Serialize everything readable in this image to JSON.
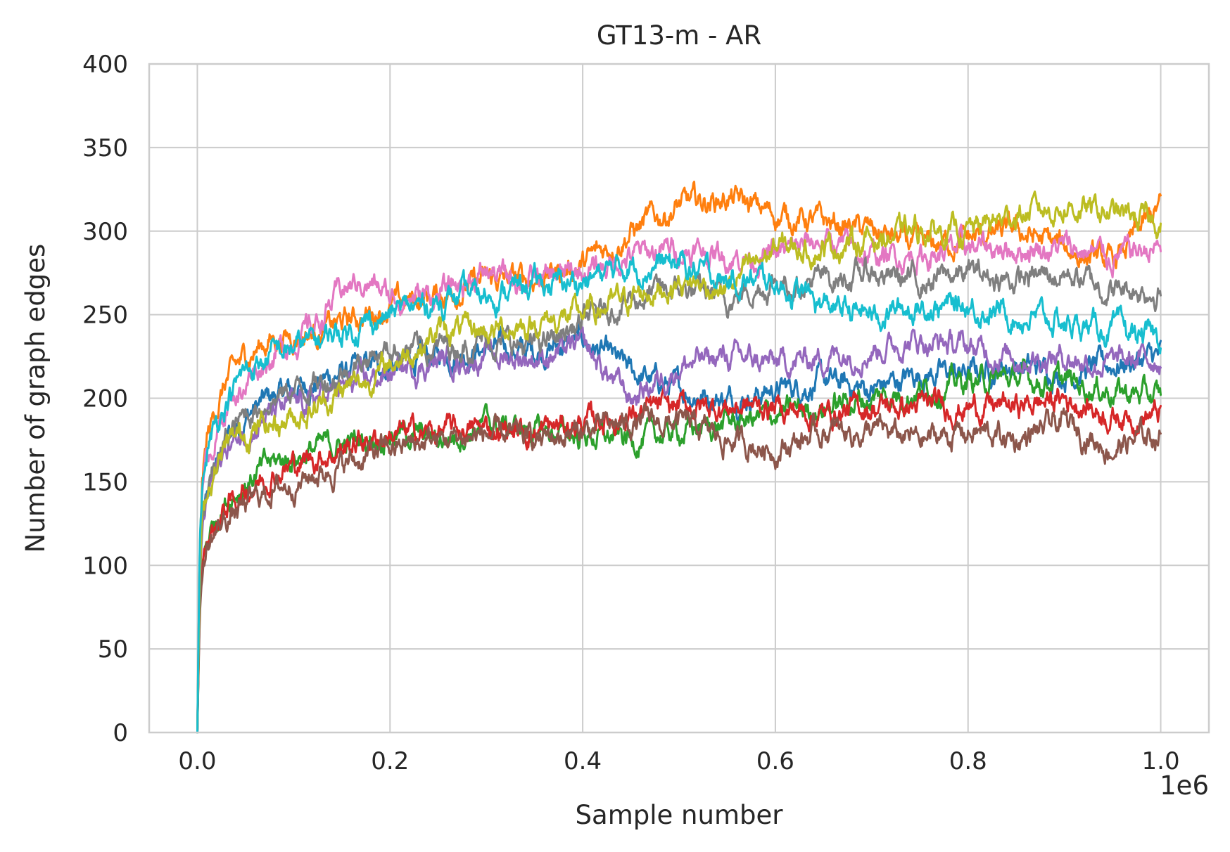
{
  "chart_data": {
    "type": "line",
    "title": "GT13-m - AR",
    "xlabel": "Sample number",
    "ylabel": "Number of graph edges",
    "x_offset_label": "1e6",
    "xlim": [
      -0.05,
      1.05
    ],
    "ylim": [
      0,
      400
    ],
    "xticks": [
      0.0,
      0.2,
      0.4,
      0.6,
      0.8,
      1.0
    ],
    "xtick_labels": [
      "0.0",
      "0.2",
      "0.4",
      "0.6",
      "0.8",
      "1.0"
    ],
    "yticks": [
      0,
      50,
      100,
      150,
      200,
      250,
      300,
      350,
      400
    ],
    "ytick_labels": [
      "0",
      "50",
      "100",
      "150",
      "200",
      "250",
      "300",
      "350",
      "400"
    ],
    "grid": true,
    "legend": "none",
    "x": [
      0,
      0.0025,
      0.005,
      0.01,
      0.02,
      0.03,
      0.05,
      0.075,
      0.1,
      0.125,
      0.15,
      0.175,
      0.2,
      0.25,
      0.3,
      0.35,
      0.4,
      0.45,
      0.5,
      0.55,
      0.6,
      0.65,
      0.7,
      0.75,
      0.8,
      0.85,
      0.9,
      0.95,
      1.0
    ],
    "series": [
      {
        "color": "#1f77b4",
        "values": [
          0,
          95,
          120,
          140,
          160,
          175,
          190,
          200,
          205,
          210,
          215,
          218,
          220,
          225,
          230,
          228,
          235,
          215,
          205,
          200,
          205,
          210,
          205,
          215,
          215,
          220,
          215,
          220,
          225
        ]
      },
      {
        "color": "#ff7f0e",
        "values": [
          0,
          110,
          150,
          175,
          195,
          210,
          225,
          235,
          238,
          240,
          245,
          250,
          255,
          262,
          270,
          272,
          280,
          300,
          315,
          320,
          310,
          305,
          300,
          290,
          295,
          300,
          290,
          280,
          315
        ]
      },
      {
        "color": "#2ca02c",
        "values": [
          0,
          80,
          100,
          115,
          130,
          140,
          150,
          160,
          165,
          170,
          172,
          175,
          180,
          175,
          185,
          180,
          178,
          175,
          180,
          185,
          190,
          195,
          200,
          205,
          210,
          212,
          210,
          205,
          200
        ]
      },
      {
        "color": "#d62728",
        "values": [
          0,
          75,
          100,
          115,
          125,
          135,
          145,
          155,
          160,
          165,
          170,
          175,
          178,
          180,
          182,
          180,
          185,
          190,
          195,
          195,
          195,
          190,
          195,
          195,
          195,
          195,
          200,
          190,
          190
        ]
      },
      {
        "color": "#9467bd",
        "values": [
          0,
          90,
          120,
          140,
          160,
          170,
          180,
          190,
          195,
          200,
          205,
          210,
          215,
          222,
          225,
          225,
          230,
          200,
          220,
          225,
          220,
          225,
          230,
          235,
          230,
          225,
          225,
          220,
          225
        ]
      },
      {
        "color": "#8c564b",
        "values": [
          0,
          70,
          95,
          110,
          120,
          128,
          135,
          145,
          150,
          155,
          160,
          165,
          170,
          175,
          178,
          175,
          180,
          185,
          185,
          175,
          170,
          180,
          180,
          175,
          180,
          175,
          185,
          170,
          180
        ]
      },
      {
        "color": "#e377c2",
        "values": [
          0,
          110,
          145,
          165,
          180,
          195,
          210,
          225,
          235,
          245,
          265,
          270,
          260,
          262,
          275,
          270,
          275,
          285,
          290,
          285,
          285,
          295,
          285,
          285,
          290,
          290,
          290,
          285,
          290
        ]
      },
      {
        "color": "#7f7f7f",
        "values": [
          0,
          90,
          120,
          140,
          160,
          175,
          190,
          200,
          205,
          210,
          215,
          225,
          230,
          230,
          235,
          230,
          245,
          260,
          265,
          260,
          270,
          270,
          275,
          270,
          275,
          270,
          275,
          265,
          265
        ]
      },
      {
        "color": "#bcbd22",
        "values": [
          0,
          95,
          125,
          145,
          160,
          170,
          180,
          185,
          190,
          195,
          205,
          210,
          220,
          240,
          240,
          245,
          250,
          260,
          270,
          265,
          290,
          290,
          295,
          300,
          300,
          310,
          315,
          310,
          305
        ]
      },
      {
        "color": "#17becf",
        "values": [
          0,
          115,
          145,
          165,
          185,
          200,
          215,
          225,
          230,
          235,
          240,
          245,
          250,
          258,
          262,
          268,
          270,
          280,
          280,
          270,
          270,
          255,
          250,
          255,
          255,
          250,
          245,
          240,
          235
        ]
      }
    ]
  }
}
